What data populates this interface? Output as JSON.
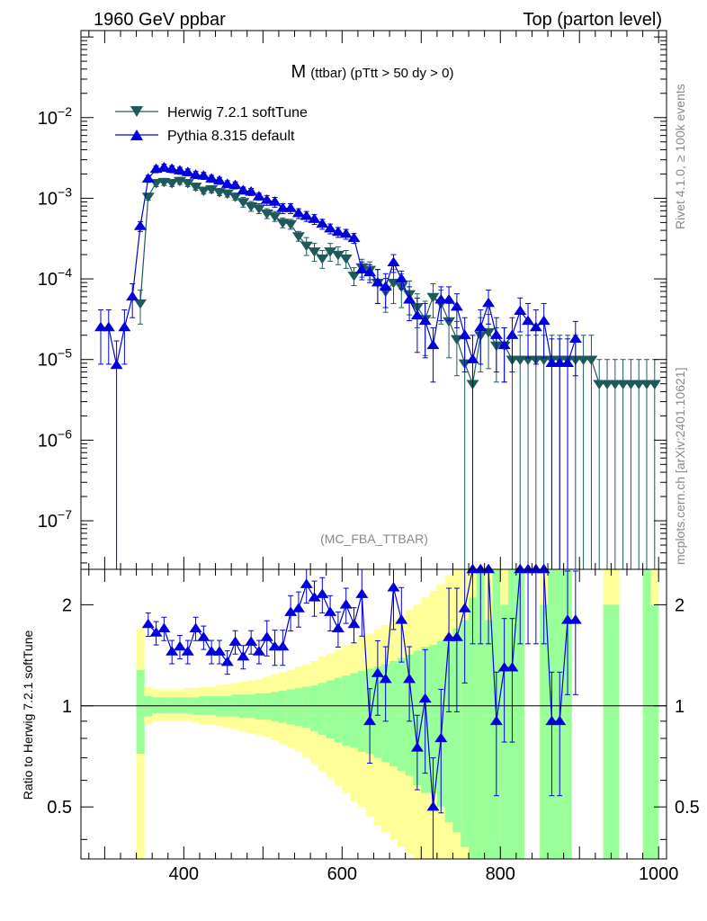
{
  "header": {
    "left": "1960 GeV ppbar",
    "right": "Top (parton level)"
  },
  "side_labels": {
    "top": "Rivet 4.1.0, ≥ 100k events",
    "bottom": "mcplots.cern.ch [arXiv:2401.10621]"
  },
  "plot_title": {
    "main": "M",
    "sub": "(ttbar) (pTtt > 50 dy > 0)"
  },
  "analysis_tag": "(MC_FBA_TTBAR)",
  "ratio_ylabel": "Ratio to Herwig 7.2.1 softTune",
  "legend": [
    {
      "name": "Herwig 7.2.1 softTune",
      "marker": "triangle-down"
    },
    {
      "name": "Pythia 8.315 default",
      "marker": "triangle-up"
    }
  ],
  "colors": {
    "herwig": "#1f5a5a",
    "pythia": "#0000dd",
    "band_inner": "#99ff99",
    "band_outer": "#ffff99",
    "axis": "#000000",
    "side_text": "#888888"
  },
  "chart_data": [
    {
      "type": "line",
      "panel": "main",
      "title": "M (ttbar) (pTtt > 50 dy > 0)",
      "xlabel": "",
      "ylabel": "",
      "xlim": [
        270,
        1010
      ],
      "ylim": [
        2.5e-08,
        0.12
      ],
      "yscale": "log",
      "y_tick_labels": [
        {
          "value": 1e-07,
          "base": "10",
          "exp": "−7"
        },
        {
          "value": 1e-06,
          "base": "10",
          "exp": "−6"
        },
        {
          "value": 1e-05,
          "base": "10",
          "exp": "−5"
        },
        {
          "value": 0.0001,
          "base": "10",
          "exp": "−4"
        },
        {
          "value": 0.001,
          "base": "10",
          "exp": "−3"
        },
        {
          "value": 0.01,
          "base": "10",
          "exp": "−2"
        }
      ],
      "series": [
        {
          "name": "Herwig 7.2.1 softTune",
          "marker": "triangle-down",
          "x": [
            345,
            355,
            365,
            375,
            385,
            395,
            405,
            415,
            425,
            435,
            445,
            455,
            465,
            475,
            485,
            495,
            505,
            515,
            525,
            535,
            545,
            555,
            565,
            575,
            585,
            595,
            605,
            615,
            625,
            635,
            645,
            655,
            665,
            675,
            685,
            695,
            705,
            715,
            725,
            735,
            745,
            755,
            765,
            775,
            785,
            795,
            805,
            815,
            825,
            835,
            845,
            855,
            865,
            875,
            885,
            895,
            905,
            915,
            925,
            935,
            945,
            955,
            965,
            975,
            985,
            995
          ],
          "y": [
            5e-05,
            0.00105,
            0.00155,
            0.0016,
            0.00155,
            0.00165,
            0.00155,
            0.0014,
            0.00125,
            0.0013,
            0.0012,
            0.00115,
            0.00105,
            0.0009,
            0.0008,
            0.00075,
            0.00065,
            0.0006,
            0.0005,
            0.00048,
            0.00034,
            0.00026,
            0.00022,
            0.00018,
            0.00022,
            0.0002,
            0.00018,
            0.00011,
            0.00014,
            0.00013,
            9e-05,
            7e-05,
            9e-05,
            8e-05,
            6.5e-05,
            4.5e-05,
            3.2e-05,
            6e-05,
            5e-05,
            3e-05,
            1.8e-05,
            9e-06,
            5e-06,
            2e-05,
            2.2e-05,
            1.5e-05,
            1.5e-05,
            1e-05,
            1e-05,
            1e-05,
            1e-05,
            1e-05,
            1e-05,
            1e-05,
            1e-05,
            1e-05,
            1e-05,
            1e-05,
            5e-06,
            5e-06,
            5e-06,
            5e-06,
            5e-06,
            5e-06,
            5e-06,
            5e-06
          ]
        },
        {
          "name": "Pythia 8.315 default",
          "marker": "triangle-up",
          "x": [
            295,
            305,
            315,
            325,
            335,
            345,
            355,
            365,
            375,
            385,
            395,
            405,
            415,
            425,
            435,
            445,
            455,
            465,
            475,
            485,
            495,
            505,
            515,
            525,
            535,
            545,
            555,
            565,
            575,
            585,
            595,
            605,
            615,
            625,
            635,
            645,
            655,
            665,
            675,
            685,
            695,
            705,
            715,
            725,
            735,
            745,
            755,
            765,
            775,
            785,
            795,
            805,
            815,
            825,
            835,
            845,
            855,
            865,
            875,
            885,
            895
          ],
          "y": [
            2.5e-05,
            2.5e-05,
            8.5e-06,
            2.5e-05,
            6e-05,
            0.00045,
            0.00175,
            0.0023,
            0.0024,
            0.0023,
            0.0022,
            0.0021,
            0.00195,
            0.0019,
            0.00175,
            0.00165,
            0.0015,
            0.00145,
            0.00125,
            0.0012,
            0.00105,
            0.00095,
            0.0009,
            0.00075,
            0.00075,
            0.00065,
            0.0006,
            0.00055,
            0.00048,
            0.00042,
            0.00038,
            0.00036,
            0.00032,
            0.00013,
            0.00012,
            9e-05,
            8e-05,
            0.00016,
            0.0001,
            5.5e-05,
            3.5e-05,
            3e-05,
            1.5e-05,
            5.5e-05,
            5.5e-05,
            4.5e-05,
            2e-05,
            1e-05,
            2.5e-05,
            5e-05,
            2e-05,
            1.5e-05,
            2e-05,
            4e-05,
            3e-05,
            2.5e-05,
            3e-05,
            9e-06,
            9e-06,
            9e-06,
            1.8e-05
          ]
        }
      ]
    },
    {
      "type": "line",
      "panel": "ratio",
      "xlabel": "",
      "ylabel": "Ratio to Herwig 7.2.1 softTune",
      "xlim": [
        270,
        1010
      ],
      "ylim": [
        0.35,
        2.55
      ],
      "yscale": "log",
      "x_tick_labels": [
        "400",
        "600",
        "800",
        "1000"
      ],
      "x_ticks": [
        400,
        600,
        800,
        1000
      ],
      "y_tick_labels": [
        "0.5",
        "1",
        "2"
      ],
      "y_ticks": [
        0.5,
        1,
        2
      ],
      "reference_line": 1,
      "bands": {
        "x_edges": [
          340,
          350,
          360,
          370,
          380,
          390,
          400,
          410,
          420,
          430,
          440,
          450,
          460,
          470,
          480,
          490,
          500,
          510,
          520,
          530,
          540,
          550,
          560,
          570,
          580,
          590,
          600,
          610,
          620,
          630,
          640,
          650,
          660,
          670,
          680,
          690,
          700,
          710,
          720,
          730,
          740,
          750,
          760,
          770,
          780,
          790,
          800,
          810,
          820,
          830,
          840,
          850,
          860,
          870,
          880,
          890,
          900,
          910,
          920,
          930,
          940,
          950,
          960,
          970,
          980,
          990,
          1000
        ],
        "inner_lo": [
          0.72,
          0.93,
          0.95,
          0.95,
          0.95,
          0.95,
          0.95,
          0.94,
          0.94,
          0.94,
          0.93,
          0.93,
          0.93,
          0.92,
          0.92,
          0.91,
          0.91,
          0.9,
          0.89,
          0.88,
          0.87,
          0.86,
          0.84,
          0.82,
          0.8,
          0.78,
          0.76,
          0.75,
          0.73,
          0.72,
          0.7,
          0.68,
          0.66,
          0.64,
          0.62,
          0.58,
          0.55,
          0.55,
          0.5,
          0.45,
          0.42,
          0.38,
          0.35,
          0.35,
          0.35,
          0.35,
          0.35,
          0.35,
          0.35,
          0.35,
          0.35,
          0.35,
          0.35,
          0.35,
          0.35,
          0.35,
          0.35,
          0.35,
          0.35,
          0.35,
          0.35,
          0.35,
          0.35,
          0.35,
          0.35,
          0.35
        ],
        "inner_hi": [
          1.28,
          1.07,
          1.06,
          1.06,
          1.06,
          1.06,
          1.06,
          1.06,
          1.07,
          1.07,
          1.07,
          1.07,
          1.08,
          1.08,
          1.08,
          1.09,
          1.09,
          1.1,
          1.11,
          1.12,
          1.13,
          1.14,
          1.15,
          1.17,
          1.19,
          1.21,
          1.23,
          1.25,
          1.27,
          1.29,
          1.31,
          1.33,
          1.36,
          1.39,
          1.42,
          1.46,
          1.5,
          1.52,
          1.56,
          1.62,
          1.7,
          1.8,
          2.1,
          2.55,
          1.8,
          2.55,
          2.0,
          2.55,
          2.55,
          2.55,
          2.55,
          2.0,
          2.55,
          2.55,
          2.55,
          2.55,
          2.55,
          2.55,
          2.55,
          2.0,
          2.0,
          2.55,
          2.0,
          2.55,
          2.55,
          2.0
        ],
        "outer_lo": [
          0.35,
          0.88,
          0.9,
          0.9,
          0.9,
          0.9,
          0.9,
          0.89,
          0.88,
          0.88,
          0.87,
          0.86,
          0.85,
          0.84,
          0.83,
          0.82,
          0.81,
          0.79,
          0.77,
          0.75,
          0.73,
          0.7,
          0.67,
          0.64,
          0.61,
          0.58,
          0.55,
          0.52,
          0.5,
          0.47,
          0.44,
          0.42,
          0.4,
          0.38,
          0.36,
          0.35,
          0.35,
          0.35,
          0.35,
          0.35,
          0.35,
          0.35,
          0.35,
          0.35,
          0.35,
          0.35,
          0.35,
          0.35,
          0.35,
          0.35,
          0.35,
          0.35,
          0.35,
          0.35,
          0.35,
          0.35,
          0.35,
          0.35,
          0.35,
          0.35,
          0.35,
          0.35,
          0.35,
          0.35,
          0.35,
          0.35
        ],
        "outer_hi": [
          1.7,
          1.14,
          1.12,
          1.12,
          1.12,
          1.12,
          1.13,
          1.13,
          1.14,
          1.14,
          1.15,
          1.16,
          1.17,
          1.18,
          1.19,
          1.2,
          1.22,
          1.24,
          1.26,
          1.28,
          1.31,
          1.33,
          1.36,
          1.4,
          1.43,
          1.47,
          1.51,
          1.55,
          1.6,
          1.64,
          1.69,
          1.74,
          1.8,
          1.86,
          1.93,
          2.0,
          2.1,
          2.2,
          2.3,
          2.45,
          2.55,
          2.55,
          2.55,
          2.55,
          2.55,
          2.55,
          2.55,
          2.55,
          2.55,
          2.55,
          2.55,
          2.55,
          2.55,
          2.55,
          2.55,
          2.55,
          2.55,
          2.55,
          2.55,
          2.55,
          2.55,
          2.55,
          2.55,
          2.55,
          2.55,
          2.55
        ],
        "show": [
          true,
          true,
          true,
          true,
          true,
          true,
          true,
          true,
          true,
          true,
          true,
          true,
          true,
          true,
          true,
          true,
          true,
          true,
          true,
          true,
          true,
          true,
          true,
          true,
          true,
          true,
          true,
          true,
          true,
          true,
          true,
          true,
          true,
          true,
          true,
          true,
          true,
          true,
          true,
          true,
          true,
          true,
          true,
          true,
          true,
          true,
          true,
          true,
          true,
          false,
          false,
          true,
          true,
          true,
          true,
          false,
          false,
          false,
          false,
          true,
          true,
          false,
          false,
          false,
          true,
          true
        ]
      },
      "series": [
        {
          "name": "Pythia 8.315 default",
          "marker": "triangle-up",
          "x": [
            355,
            365,
            375,
            385,
            395,
            405,
            415,
            425,
            435,
            445,
            455,
            465,
            475,
            485,
            495,
            505,
            515,
            525,
            535,
            545,
            555,
            565,
            575,
            585,
            595,
            605,
            615,
            625,
            635,
            645,
            655,
            665,
            675,
            685,
            695,
            705,
            715,
            725,
            735,
            745,
            755,
            765,
            775,
            785,
            795,
            805,
            815,
            825,
            835,
            845,
            855,
            865,
            875,
            885,
            895
          ],
          "y": [
            1.75,
            1.65,
            1.7,
            1.45,
            1.5,
            1.45,
            1.7,
            1.6,
            1.45,
            1.45,
            1.35,
            1.55,
            1.4,
            1.55,
            1.45,
            1.6,
            1.5,
            1.5,
            1.9,
            1.95,
            2.3,
            2.1,
            2.15,
            1.9,
            1.7,
            2.0,
            1.75,
            2.15,
            0.9,
            1.25,
            1.2,
            2.25,
            1.8,
            1.2,
            0.75,
            1.05,
            0.5,
            0.8,
            1.6,
            1.6,
            1.95,
            2.55,
            2.55,
            2.55,
            0.9,
            1.3,
            1.3,
            2.55,
            2.55,
            2.55,
            2.55,
            0.9,
            0.9,
            1.8,
            1.8
          ]
        }
      ]
    }
  ]
}
